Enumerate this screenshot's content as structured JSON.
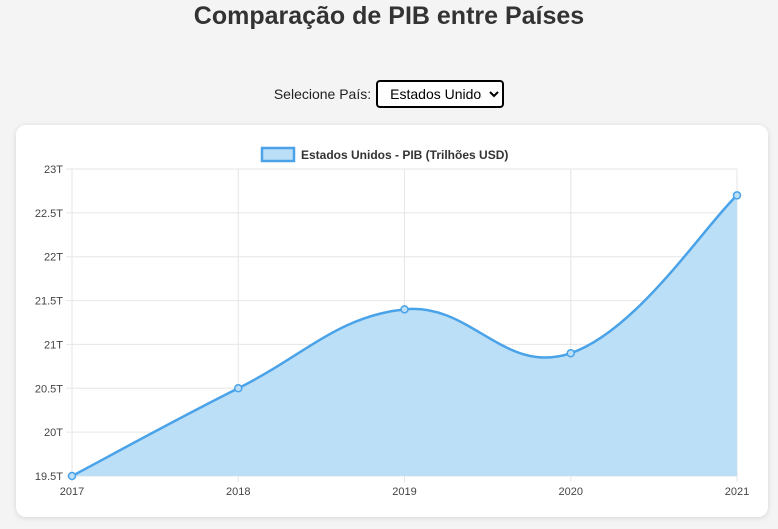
{
  "page": {
    "title": "Comparação de PIB entre Países"
  },
  "selector": {
    "label": "Selecione País:",
    "selected": "Estados Unidos",
    "options": [
      "Estados Unidos"
    ]
  },
  "chart_data": {
    "type": "area",
    "title": "",
    "xlabel": "",
    "ylabel": "",
    "categories": [
      "2017",
      "2018",
      "2019",
      "2020",
      "2021"
    ],
    "series": [
      {
        "name": "Estados Unidos - PIB (Trilhões USD)",
        "values": [
          19.5,
          20.5,
          21.4,
          20.9,
          22.7
        ],
        "line_color": "#4aa3e8",
        "fill_color": "#bcdff8"
      }
    ],
    "y_ticks": [
      "19.5T",
      "20T",
      "20.5T",
      "21T",
      "21.5T",
      "22T",
      "22.5T",
      "23T"
    ],
    "ylim": [
      19.5,
      23
    ],
    "grid": true,
    "legend_position": "top"
  }
}
